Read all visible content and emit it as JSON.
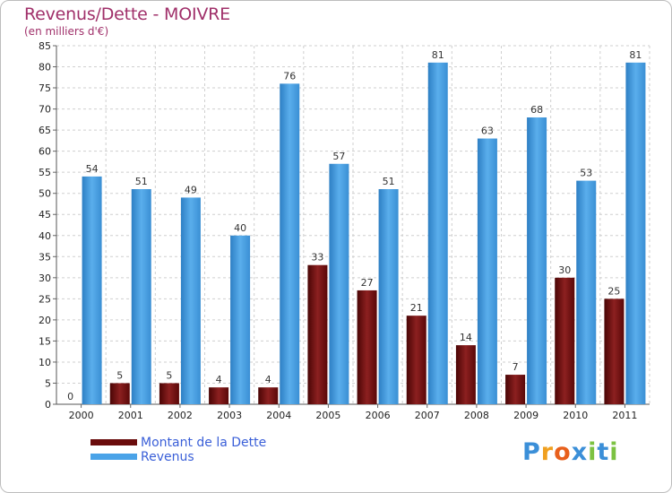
{
  "chart_data": {
    "type": "bar",
    "title": "Revenus/Dette - MOIVRE",
    "subtitle": "(en milliers d'€)",
    "xlabel": "",
    "ylabel": "",
    "ylim": [
      0,
      85
    ],
    "ytick_step": 5,
    "categories": [
      "2000",
      "2001",
      "2002",
      "2003",
      "2004",
      "2005",
      "2006",
      "2007",
      "2008",
      "2009",
      "2010",
      "2011"
    ],
    "series": [
      {
        "name": "Montant de la Dette",
        "color": "#7a1010",
        "values": [
          0,
          5,
          5,
          4,
          4,
          33,
          27,
          21,
          14,
          7,
          30,
          25
        ]
      },
      {
        "name": "Revenus",
        "color": "#4aa3e8",
        "values": [
          54,
          51,
          49,
          40,
          76,
          57,
          51,
          81,
          63,
          68,
          53,
          81
        ]
      }
    ],
    "grid": true,
    "legend_position": "bottom-left"
  },
  "brand": {
    "letters": [
      "P",
      "r",
      "o",
      "x",
      "i",
      "t",
      "i"
    ],
    "colors": [
      "#3b8fd8",
      "#f0a020",
      "#e8601c",
      "#3b8fd8",
      "#7cc242",
      "#3b8fd8",
      "#7cc242"
    ]
  }
}
